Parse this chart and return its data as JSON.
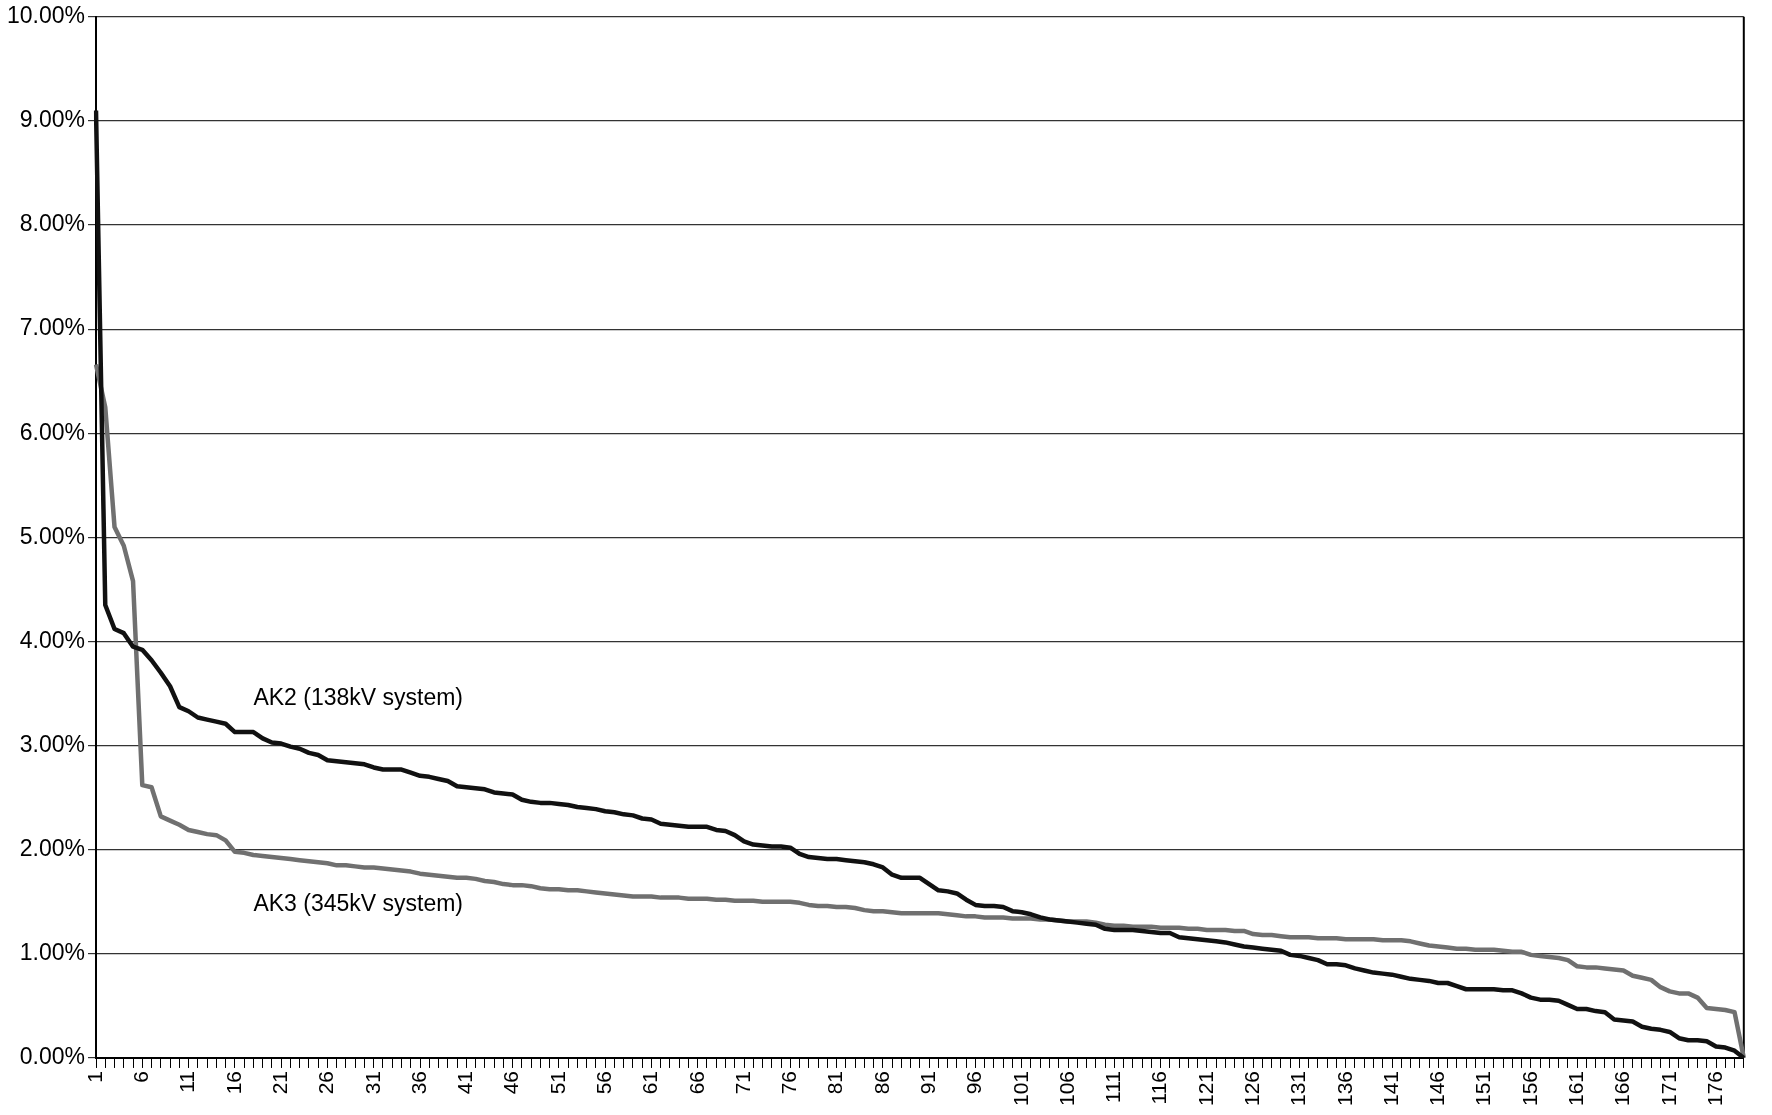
{
  "chart_data": {
    "type": "line",
    "categories": [
      "1",
      null,
      null,
      null,
      null,
      "6",
      null,
      null,
      null,
      null,
      "11",
      null,
      null,
      null,
      null,
      "16",
      null,
      null,
      null,
      null,
      "21",
      null,
      null,
      null,
      null,
      "26",
      null,
      null,
      null,
      null,
      "31",
      null,
      null,
      null,
      null,
      "36",
      null,
      null,
      null,
      null,
      "41",
      null,
      null,
      null,
      null,
      "46",
      null,
      null,
      null,
      null,
      "51",
      null,
      null,
      null,
      null,
      "56",
      null,
      null,
      null,
      null,
      "61",
      null,
      null,
      null,
      null,
      "66",
      null,
      null,
      null,
      null,
      "71",
      null,
      null,
      null,
      null,
      "76",
      null,
      null,
      null,
      null,
      "81",
      null,
      null,
      null,
      null,
      "86",
      null,
      null,
      null,
      null,
      "91",
      null,
      null,
      null,
      null,
      "96",
      null,
      null,
      null,
      null,
      "101",
      null,
      null,
      null,
      null,
      "106",
      null,
      null,
      null,
      null,
      "111",
      null,
      null,
      null,
      null,
      "116",
      null,
      null,
      null,
      null,
      "121",
      null,
      null,
      null,
      null,
      "126",
      null,
      null,
      null,
      null,
      "131",
      null,
      null,
      null,
      null,
      "136",
      null,
      null,
      null,
      null,
      "141",
      null,
      null,
      null,
      null,
      "146",
      null,
      null,
      null,
      null,
      "151",
      null,
      null,
      null,
      null,
      "156",
      null,
      null,
      null,
      null,
      "161",
      null,
      null,
      null,
      null,
      "166",
      null,
      null,
      null,
      null,
      "171",
      null,
      null,
      null,
      null,
      "176",
      null,
      null,
      null
    ],
    "series": [
      {
        "name": "AK2 (138kV system)",
        "color": "#111111",
        "values": [
          9.1,
          4.35,
          4.12,
          4.08,
          3.95,
          3.92,
          3.82,
          3.7,
          3.57,
          3.37,
          3.33,
          3.27,
          3.25,
          3.23,
          3.21,
          3.13,
          3.13,
          3.13,
          3.07,
          3.03,
          3.02,
          2.99,
          2.97,
          2.93,
          2.91,
          2.86,
          2.85,
          2.84,
          2.83,
          2.82,
          2.79,
          2.77,
          2.77,
          2.77,
          2.74,
          2.71,
          2.7,
          2.68,
          2.66,
          2.61,
          2.6,
          2.59,
          2.58,
          2.55,
          2.54,
          2.53,
          2.48,
          2.46,
          2.45,
          2.45,
          2.44,
          2.43,
          2.41,
          2.4,
          2.39,
          2.37,
          2.36,
          2.34,
          2.33,
          2.3,
          2.29,
          2.25,
          2.24,
          2.23,
          2.22,
          2.22,
          2.22,
          2.19,
          2.18,
          2.14,
          2.08,
          2.05,
          2.04,
          2.03,
          2.03,
          2.02,
          1.96,
          1.93,
          1.92,
          1.91,
          1.91,
          1.9,
          1.89,
          1.88,
          1.86,
          1.83,
          1.76,
          1.73,
          1.73,
          1.73,
          1.67,
          1.61,
          1.6,
          1.58,
          1.52,
          1.47,
          1.46,
          1.46,
          1.45,
          1.41,
          1.4,
          1.38,
          1.35,
          1.33,
          1.32,
          1.31,
          1.3,
          1.29,
          1.28,
          1.24,
          1.23,
          1.23,
          1.23,
          1.22,
          1.21,
          1.2,
          1.2,
          1.16,
          1.15,
          1.14,
          1.13,
          1.12,
          1.11,
          1.09,
          1.07,
          1.06,
          1.05,
          1.04,
          1.03,
          0.99,
          0.98,
          0.96,
          0.94,
          0.9,
          0.9,
          0.89,
          0.86,
          0.84,
          0.82,
          0.81,
          0.8,
          0.78,
          0.76,
          0.75,
          0.74,
          0.72,
          0.72,
          0.69,
          0.66,
          0.66,
          0.66,
          0.66,
          0.65,
          0.65,
          0.62,
          0.58,
          0.56,
          0.56,
          0.55,
          0.51,
          0.47,
          0.47,
          0.45,
          0.44,
          0.37,
          0.36,
          0.35,
          0.3,
          0.28,
          0.27,
          0.25,
          0.19,
          0.17,
          0.17,
          0.16,
          0.11,
          0.1,
          0.07,
          0
        ]
      },
      {
        "name": "AK3 (345kV system)",
        "color": "#707070",
        "values": [
          6.66,
          6.25,
          5.1,
          4.92,
          4.58,
          2.62,
          2.6,
          2.32,
          2.28,
          2.24,
          2.19,
          2.17,
          2.15,
          2.14,
          2.09,
          1.98,
          1.97,
          1.95,
          1.94,
          1.93,
          1.92,
          1.91,
          1.9,
          1.89,
          1.88,
          1.87,
          1.85,
          1.85,
          1.84,
          1.83,
          1.83,
          1.82,
          1.81,
          1.8,
          1.79,
          1.77,
          1.76,
          1.75,
          1.74,
          1.73,
          1.73,
          1.72,
          1.7,
          1.69,
          1.67,
          1.66,
          1.66,
          1.65,
          1.63,
          1.62,
          1.62,
          1.61,
          1.61,
          1.6,
          1.59,
          1.58,
          1.57,
          1.56,
          1.55,
          1.55,
          1.55,
          1.54,
          1.54,
          1.54,
          1.53,
          1.53,
          1.53,
          1.52,
          1.52,
          1.51,
          1.51,
          1.51,
          1.5,
          1.5,
          1.5,
          1.5,
          1.49,
          1.47,
          1.46,
          1.46,
          1.45,
          1.45,
          1.44,
          1.42,
          1.41,
          1.41,
          1.4,
          1.39,
          1.39,
          1.39,
          1.39,
          1.39,
          1.38,
          1.37,
          1.36,
          1.36,
          1.35,
          1.35,
          1.35,
          1.34,
          1.34,
          1.34,
          1.33,
          1.33,
          1.32,
          1.31,
          1.31,
          1.31,
          1.3,
          1.28,
          1.27,
          1.27,
          1.26,
          1.26,
          1.26,
          1.25,
          1.25,
          1.25,
          1.24,
          1.24,
          1.23,
          1.23,
          1.23,
          1.22,
          1.22,
          1.19,
          1.18,
          1.18,
          1.17,
          1.16,
          1.16,
          1.16,
          1.15,
          1.15,
          1.15,
          1.14,
          1.14,
          1.14,
          1.14,
          1.13,
          1.13,
          1.13,
          1.12,
          1.1,
          1.08,
          1.07,
          1.06,
          1.05,
          1.05,
          1.04,
          1.04,
          1.04,
          1.03,
          1.02,
          1.02,
          0.99,
          0.98,
          0.97,
          0.96,
          0.94,
          0.88,
          0.87,
          0.87,
          0.86,
          0.85,
          0.84,
          0.79,
          0.77,
          0.75,
          0.68,
          0.64,
          0.62,
          0.62,
          0.58,
          0.48,
          0.47,
          0.46,
          0.44,
          0
        ]
      }
    ],
    "ylim": [
      0,
      10
    ],
    "yticks": [
      {
        "value": 0,
        "label": "0.00%"
      },
      {
        "value": 1,
        "label": "1.00%"
      },
      {
        "value": 2,
        "label": "2.00%"
      },
      {
        "value": 3,
        "label": "3.00%"
      },
      {
        "value": 4,
        "label": "4.00%"
      },
      {
        "value": 5,
        "label": "5.00%"
      },
      {
        "value": 6,
        "label": "6.00%"
      },
      {
        "value": 7,
        "label": "7.00%"
      },
      {
        "value": 8,
        "label": "8.00%"
      },
      {
        "value": 9,
        "label": "9.00%"
      },
      {
        "value": 10,
        "label": "10.00%"
      }
    ],
    "grid": "y",
    "legend": false,
    "marker": "none",
    "line_style": "solid"
  }
}
